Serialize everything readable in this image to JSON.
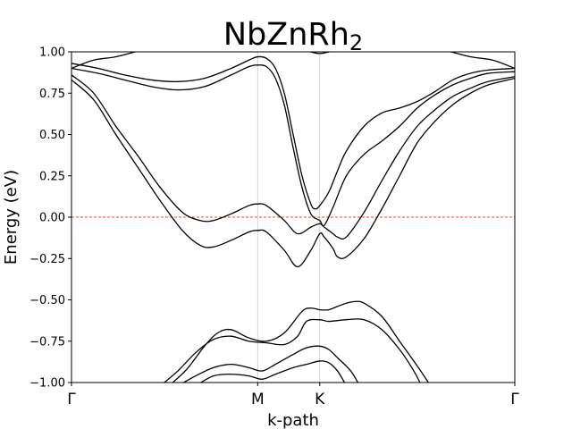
{
  "chart_data": {
    "type": "line",
    "title": {
      "main": "NbZnRh",
      "subscript": "2"
    },
    "xlabel": "k-path",
    "ylabel": "Energy (eV)",
    "ylim": [
      -1.0,
      1.0
    ],
    "yticks": [
      -1.0,
      -0.75,
      -0.5,
      -0.25,
      0.0,
      0.25,
      0.5,
      0.75,
      1.0
    ],
    "ytick_labels": [
      "−1.00",
      "−0.75",
      "−0.50",
      "−0.25",
      "0.00",
      "0.25",
      "0.50",
      "0.75",
      "1.00"
    ],
    "xlim": [
      0,
      100
    ],
    "xticks": [
      {
        "label": "Γ",
        "x": 0
      },
      {
        "label": "M",
        "x": 42
      },
      {
        "label": "K",
        "x": 56
      },
      {
        "label": "Γ",
        "x": 100
      }
    ],
    "fermi_level": 0.0,
    "grid": "vertical lines at high-symmetry points",
    "colors": {
      "bands": "#000000",
      "fermi_line": "#ff0000",
      "symmetry_lines": "#cccccc"
    },
    "series": [
      {
        "points": [
          [
            0,
            0.9
          ],
          [
            5,
            0.95
          ],
          [
            10,
            0.97
          ],
          [
            16,
            1.01
          ],
          [
            20,
            1.02
          ]
        ]
      },
      {
        "points": [
          [
            100,
            0.9
          ],
          [
            95,
            0.95
          ],
          [
            90,
            0.97
          ],
          [
            84,
            1.01
          ],
          [
            80,
            1.02
          ]
        ]
      },
      {
        "points": [
          [
            53,
            1.005
          ],
          [
            55,
            0.993
          ],
          [
            56,
            0.99
          ],
          [
            57,
            0.993
          ],
          [
            59,
            1.005
          ]
        ]
      },
      {
        "points": [
          [
            0,
            0.93
          ],
          [
            6,
            0.9
          ],
          [
            12,
            0.86
          ],
          [
            18,
            0.83
          ],
          [
            24,
            0.82
          ],
          [
            30,
            0.84
          ],
          [
            36,
            0.9
          ],
          [
            40,
            0.95
          ],
          [
            42,
            0.97
          ],
          [
            44,
            0.96
          ],
          [
            46,
            0.9
          ],
          [
            48,
            0.75
          ],
          [
            50,
            0.5
          ],
          [
            52,
            0.25
          ],
          [
            54,
            0.08
          ],
          [
            55,
            0.05
          ],
          [
            56,
            0.07
          ],
          [
            58,
            0.15
          ],
          [
            60,
            0.28
          ],
          [
            62,
            0.4
          ],
          [
            66,
            0.55
          ],
          [
            70,
            0.63
          ],
          [
            74,
            0.66
          ],
          [
            78,
            0.7
          ],
          [
            82,
            0.76
          ],
          [
            86,
            0.83
          ],
          [
            90,
            0.87
          ],
          [
            94,
            0.89
          ],
          [
            100,
            0.9
          ]
        ]
      },
      {
        "points": [
          [
            0,
            0.9
          ],
          [
            6,
            0.87
          ],
          [
            12,
            0.83
          ],
          [
            18,
            0.79
          ],
          [
            24,
            0.77
          ],
          [
            30,
            0.79
          ],
          [
            36,
            0.86
          ],
          [
            40,
            0.91
          ],
          [
            42,
            0.92
          ],
          [
            44,
            0.91
          ],
          [
            46,
            0.84
          ],
          [
            48,
            0.68
          ],
          [
            50,
            0.42
          ],
          [
            52,
            0.18
          ],
          [
            54,
            0.02
          ],
          [
            56,
            -0.02
          ],
          [
            57,
            -0.05
          ],
          [
            59,
            0.06
          ],
          [
            62,
            0.25
          ],
          [
            66,
            0.38
          ],
          [
            70,
            0.46
          ],
          [
            74,
            0.55
          ],
          [
            78,
            0.66
          ],
          [
            82,
            0.74
          ],
          [
            86,
            0.8
          ],
          [
            90,
            0.84
          ],
          [
            94,
            0.87
          ],
          [
            100,
            0.88
          ]
        ]
      },
      {
        "points": [
          [
            0,
            0.86
          ],
          [
            5,
            0.75
          ],
          [
            10,
            0.55
          ],
          [
            15,
            0.37
          ],
          [
            20,
            0.18
          ],
          [
            25,
            0.03
          ],
          [
            29,
            -0.02
          ],
          [
            32,
            -0.02
          ],
          [
            36,
            0.02
          ],
          [
            40,
            0.07
          ],
          [
            42,
            0.08
          ],
          [
            44,
            0.07
          ],
          [
            48,
            -0.02
          ],
          [
            51,
            -0.1
          ],
          [
            54,
            -0.06
          ],
          [
            56,
            -0.04
          ],
          [
            57,
            -0.06
          ],
          [
            59,
            -0.1
          ],
          [
            60,
            -0.12
          ],
          [
            62,
            -0.12
          ],
          [
            66,
            0.03
          ],
          [
            70,
            0.22
          ],
          [
            74,
            0.4
          ],
          [
            78,
            0.55
          ],
          [
            82,
            0.65
          ],
          [
            86,
            0.73
          ],
          [
            90,
            0.78
          ],
          [
            94,
            0.82
          ],
          [
            100,
            0.85
          ]
        ]
      },
      {
        "points": [
          [
            0,
            0.83
          ],
          [
            5,
            0.71
          ],
          [
            10,
            0.5
          ],
          [
            15,
            0.3
          ],
          [
            20,
            0.1
          ],
          [
            25,
            -0.08
          ],
          [
            29,
            -0.17
          ],
          [
            32,
            -0.18
          ],
          [
            36,
            -0.14
          ],
          [
            40,
            -0.09
          ],
          [
            42,
            -0.08
          ],
          [
            44,
            -0.09
          ],
          [
            48,
            -0.2
          ],
          [
            51,
            -0.3
          ],
          [
            54,
            -0.2
          ],
          [
            56,
            -0.1
          ],
          [
            57,
            -0.12
          ],
          [
            59,
            -0.19
          ],
          [
            60,
            -0.24
          ],
          [
            62,
            -0.24
          ],
          [
            66,
            -0.13
          ],
          [
            70,
            0.05
          ],
          [
            74,
            0.25
          ],
          [
            78,
            0.45
          ],
          [
            82,
            0.58
          ],
          [
            86,
            0.68
          ],
          [
            90,
            0.75
          ],
          [
            94,
            0.8
          ],
          [
            100,
            0.84
          ]
        ]
      },
      {
        "points": [
          [
            22,
            -1.02
          ],
          [
            26,
            -0.92
          ],
          [
            30,
            -0.78
          ],
          [
            33,
            -0.7
          ],
          [
            36,
            -0.68
          ],
          [
            40,
            -0.73
          ],
          [
            44,
            -0.75
          ],
          [
            48,
            -0.7
          ],
          [
            52,
            -0.57
          ],
          [
            54,
            -0.55
          ],
          [
            56,
            -0.56
          ],
          [
            58,
            -0.56
          ],
          [
            60,
            -0.54
          ],
          [
            62,
            -0.52
          ],
          [
            64,
            -0.51
          ],
          [
            66,
            -0.52
          ],
          [
            70,
            -0.6
          ],
          [
            74,
            -0.75
          ],
          [
            78,
            -0.9
          ],
          [
            81,
            -1.02
          ]
        ]
      },
      {
        "points": [
          [
            20,
            -1.02
          ],
          [
            24,
            -0.93
          ],
          [
            28,
            -0.82
          ],
          [
            32,
            -0.74
          ],
          [
            36,
            -0.72
          ],
          [
            40,
            -0.75
          ],
          [
            44,
            -0.76
          ],
          [
            48,
            -0.77
          ],
          [
            51,
            -0.72
          ],
          [
            53,
            -0.63
          ],
          [
            56,
            -0.62
          ],
          [
            58,
            -0.63
          ],
          [
            62,
            -0.62
          ],
          [
            66,
            -0.62
          ],
          [
            70,
            -0.68
          ],
          [
            74,
            -0.8
          ],
          [
            77,
            -0.92
          ],
          [
            79,
            -1.02
          ]
        ]
      },
      {
        "points": [
          [
            24,
            -1.02
          ],
          [
            28,
            -0.96
          ],
          [
            32,
            -0.91
          ],
          [
            36,
            -0.89
          ],
          [
            40,
            -0.91
          ],
          [
            43,
            -0.93
          ],
          [
            46,
            -0.89
          ],
          [
            50,
            -0.83
          ],
          [
            53,
            -0.79
          ],
          [
            56,
            -0.78
          ],
          [
            58,
            -0.8
          ],
          [
            60,
            -0.85
          ],
          [
            63,
            -0.93
          ],
          [
            65,
            -1.02
          ]
        ]
      },
      {
        "points": [
          [
            28,
            -1.02
          ],
          [
            32,
            -0.96
          ],
          [
            36,
            -0.95
          ],
          [
            40,
            -0.96
          ],
          [
            43,
            -0.98
          ],
          [
            46,
            -0.95
          ],
          [
            50,
            -0.91
          ],
          [
            53,
            -0.89
          ],
          [
            56,
            -0.87
          ],
          [
            58,
            -0.88
          ],
          [
            60,
            -0.93
          ],
          [
            62,
            -1.02
          ]
        ]
      }
    ]
  }
}
